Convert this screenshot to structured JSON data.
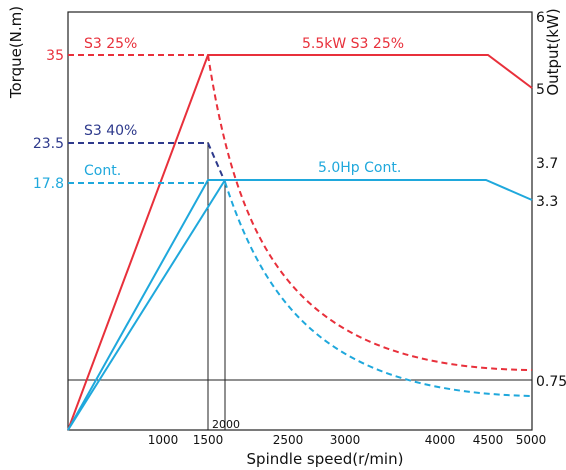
{
  "chart_data": {
    "type": "line",
    "xlabel": "Spindle speed(r/min)",
    "ylabel_left": "Torque(N.m)",
    "ylabel_right": "Output(kW)",
    "x_ticks": [
      "1000",
      "1500",
      "2500",
      "3000",
      "4000",
      "4500",
      "5000"
    ],
    "x_marker_label": "2000",
    "torque_ticks": [
      "35",
      "23.5",
      "17.8"
    ],
    "output_ticks": [
      "6",
      "5",
      "3.7",
      "3.3",
      "0.75"
    ],
    "xlim": [
      0,
      5000
    ],
    "annotations": {
      "s3_25_left": "S3 25%",
      "s3_25_right": "5.5kW S3 25%",
      "s3_40": "S3 40%",
      "cont_left": "Cont.",
      "cont_right": "5.0Hp Cont."
    },
    "series": [
      {
        "name": "S3 25%",
        "color": "#e8303b",
        "torque": [
          [
            0,
            0
          ],
          [
            1500,
            35
          ],
          [
            1500,
            35
          ],
          [
            2000,
            25
          ],
          [
            2500,
            19.4
          ],
          [
            3000,
            15.6
          ],
          [
            4000,
            10.7
          ],
          [
            4500,
            9.6
          ],
          [
            5000,
            9.0
          ]
        ],
        "output": [
          [
            0,
            0
          ],
          [
            1500,
            5.5
          ],
          [
            4500,
            5.5
          ],
          [
            5000,
            5.0
          ]
        ]
      },
      {
        "name": "S3 40%",
        "color": "#2e3a8c",
        "torque": [
          [
            0,
            23.5
          ],
          [
            1500,
            23.5
          ],
          [
            1700,
            17.8
          ]
        ]
      },
      {
        "name": "Cont.",
        "color": "#1fa8dc",
        "torque": [
          [
            0,
            17.8
          ],
          [
            1700,
            17.8
          ],
          [
            2000,
            16.4
          ],
          [
            2500,
            13.0
          ],
          [
            3000,
            10.5
          ],
          [
            4000,
            7.0
          ],
          [
            4500,
            6.2
          ],
          [
            5000,
            5.8
          ]
        ],
        "output": [
          [
            0,
            0
          ],
          [
            1500,
            3.7
          ],
          [
            4500,
            3.7
          ],
          [
            5000,
            3.3
          ]
        ],
        "output_alt": [
          [
            0,
            0
          ],
          [
            1700,
            3.7
          ]
        ]
      }
    ],
    "colors": {
      "red": "#e8303b",
      "navy": "#2e3a8c",
      "cyan": "#1fa8dc",
      "axis": "#222222"
    }
  }
}
